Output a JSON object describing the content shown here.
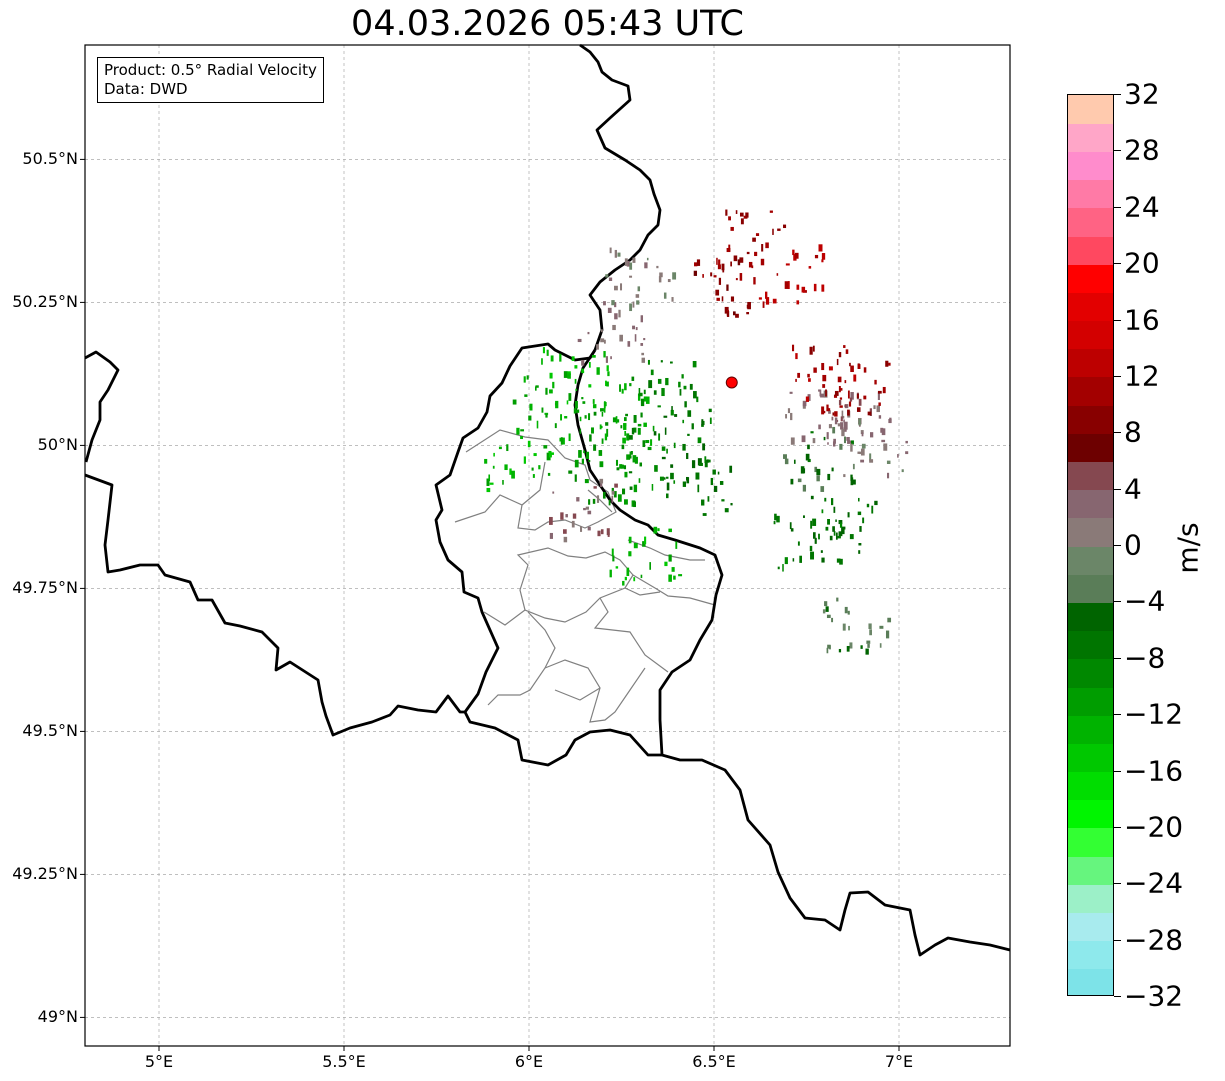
{
  "title": "04.03.2026 05:43 UTC",
  "info": {
    "product_line": "Product: 0.5° Radial Velocity",
    "data_line": "Data: DWD"
  },
  "axes": {
    "lon_range": [
      4.8,
      7.3
    ],
    "lat_range": [
      48.95,
      50.7
    ],
    "x_ticks": [
      {
        "value": 5.0,
        "label": "5°E"
      },
      {
        "value": 5.5,
        "label": "5.5°E"
      },
      {
        "value": 6.0,
        "label": "6°E"
      },
      {
        "value": 6.5,
        "label": "6.5°E"
      },
      {
        "value": 7.0,
        "label": "7°E"
      }
    ],
    "y_ticks": [
      {
        "value": 50.5,
        "label": "50.5°N"
      },
      {
        "value": 50.25,
        "label": "50.25°N"
      },
      {
        "value": 50.0,
        "label": "50°N"
      },
      {
        "value": 49.75,
        "label": "49.75°N"
      },
      {
        "value": 49.5,
        "label": "49.5°N"
      },
      {
        "value": 49.25,
        "label": "49.25°N"
      },
      {
        "value": 49.0,
        "label": "49°N"
      }
    ],
    "grid": true
  },
  "radar_site": {
    "lon": 6.548,
    "lat": 50.11,
    "color": "#ff0000"
  },
  "colorbar": {
    "unit": "m/s",
    "range": [
      -32,
      32
    ],
    "ticks": [
      {
        "value": 32,
        "label": "32"
      },
      {
        "value": 28,
        "label": "28"
      },
      {
        "value": 24,
        "label": "24"
      },
      {
        "value": 20,
        "label": "20"
      },
      {
        "value": 16,
        "label": "16"
      },
      {
        "value": 12,
        "label": "12"
      },
      {
        "value": 8,
        "label": "8"
      },
      {
        "value": 4,
        "label": "4"
      },
      {
        "value": 0,
        "label": "0"
      },
      {
        "value": -4,
        "label": "−4"
      },
      {
        "value": -8,
        "label": "−8"
      },
      {
        "value": -12,
        "label": "−12"
      },
      {
        "value": -16,
        "label": "−16"
      },
      {
        "value": -20,
        "label": "−20"
      },
      {
        "value": -24,
        "label": "−24"
      },
      {
        "value": -28,
        "label": "−28"
      },
      {
        "value": -32,
        "label": "−32"
      }
    ],
    "colors_bottom_to_top": [
      "#7de3e8",
      "#8ee9ec",
      "#a8ebee",
      "#9cf0c8",
      "#66f57e",
      "#33ff33",
      "#00f500",
      "#00dd00",
      "#00c800",
      "#00b300",
      "#009d00",
      "#008800",
      "#007500",
      "#006400",
      "#5a7d58",
      "#6b8668",
      "#8a7a78",
      "#876670",
      "#854850",
      "#6d0000",
      "#880000",
      "#a30000",
      "#bd0000",
      "#d30000",
      "#e30000",
      "#ff0000",
      "#ff4860",
      "#ff6384",
      "#ff7aa6",
      "#ff8ccc",
      "#ffa6c8",
      "#ffcaae"
    ]
  },
  "velocity_clusters": [
    {
      "lon": 5.97,
      "lat": 49.97,
      "v": -13
    },
    {
      "lon": 6.05,
      "lat": 50.08,
      "v": -12
    },
    {
      "lon": 6.12,
      "lat": 50.12,
      "v": -14
    },
    {
      "lon": 6.17,
      "lat": 50.04,
      "v": -11
    },
    {
      "lon": 6.2,
      "lat": 49.95,
      "v": -10
    },
    {
      "lon": 6.26,
      "lat": 50.06,
      "v": -12
    },
    {
      "lon": 6.3,
      "lat": 49.98,
      "v": -9
    },
    {
      "lon": 6.36,
      "lat": 50.1,
      "v": -8
    },
    {
      "lon": 6.4,
      "lat": 50.02,
      "v": -7
    },
    {
      "lon": 6.31,
      "lat": 49.81,
      "v": -13
    },
    {
      "lon": 6.45,
      "lat": 49.93,
      "v": -6
    },
    {
      "lon": 6.22,
      "lat": 50.2,
      "v": 2
    },
    {
      "lon": 6.3,
      "lat": 50.3,
      "v": 1
    },
    {
      "lon": 6.78,
      "lat": 49.98,
      "v": -5
    },
    {
      "lon": 6.85,
      "lat": 49.86,
      "v": -6
    },
    {
      "lon": 6.75,
      "lat": 49.84,
      "v": -7
    },
    {
      "lon": 6.88,
      "lat": 49.69,
      "v": -3
    },
    {
      "lon": 6.78,
      "lat": 50.05,
      "v": 2
    },
    {
      "lon": 6.86,
      "lat": 50.04,
      "v": 3
    },
    {
      "lon": 6.8,
      "lat": 50.13,
      "v": 11
    },
    {
      "lon": 6.88,
      "lat": 50.1,
      "v": 10
    },
    {
      "lon": 6.7,
      "lat": 50.3,
      "v": 12
    },
    {
      "lon": 6.6,
      "lat": 50.36,
      "v": 10
    },
    {
      "lon": 6.5,
      "lat": 50.28,
      "v": 9
    },
    {
      "lon": 6.93,
      "lat": 50.0,
      "v": 1
    },
    {
      "lon": 6.14,
      "lat": 49.89,
      "v": 3
    }
  ]
}
